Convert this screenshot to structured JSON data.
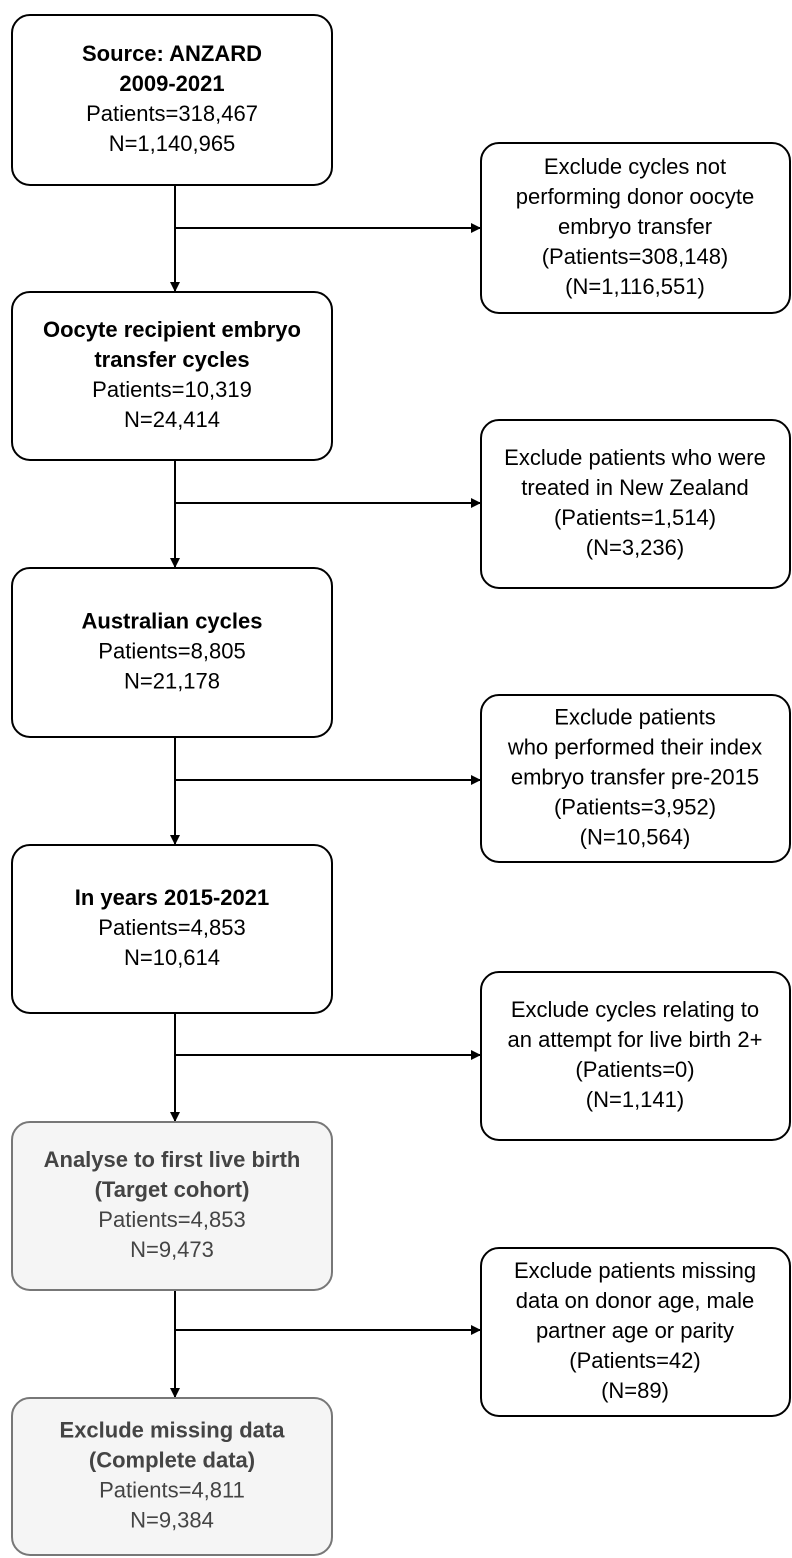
{
  "nodes": [
    {
      "title": [
        "Source: ANZARD",
        "2009-2021"
      ],
      "lines": [
        "Patients=318,467",
        "N=1,140,965"
      ]
    },
    {
      "title": [
        "Oocyte recipient embryo",
        "transfer cycles"
      ],
      "lines": [
        "Patients=10,319",
        "N=24,414"
      ]
    },
    {
      "title": [
        "Australian cycles"
      ],
      "lines": [
        "Patients=8,805",
        "N=21,178"
      ]
    },
    {
      "title": [
        "In years 2015-2021"
      ],
      "lines": [
        "Patients=4,853",
        "N=10,614"
      ]
    },
    {
      "title": [
        "Analyse to first live birth",
        "(Target cohort)"
      ],
      "lines": [
        "Patients=4,853",
        "N=9,473"
      ]
    },
    {
      "title": [
        "Exclude missing data",
        "(Complete data)"
      ],
      "lines": [
        "Patients=4,811",
        "N=9,384"
      ]
    }
  ],
  "exclusions": [
    {
      "lines": [
        "Exclude cycles not",
        "performing donor oocyte",
        "embryo transfer",
        "(Patients=308,148)",
        "(N=1,116,551)"
      ]
    },
    {
      "lines": [
        "Exclude patients who were",
        "treated in New Zealand",
        "(Patients=1,514)",
        "(N=3,236)"
      ]
    },
    {
      "lines": [
        "Exclude patients",
        "who performed their index",
        "embryo transfer pre-2015",
        "(Patients=3,952)",
        "(N=10,564)"
      ]
    },
    {
      "lines": [
        "Exclude cycles relating to",
        "an attempt for live birth 2+",
        "(Patients=0)",
        "(N=1,141)"
      ]
    },
    {
      "lines": [
        "Exclude patients missing",
        "data on donor age, male",
        "partner age or parity",
        "(Patients=42)",
        "(N=89)"
      ]
    }
  ]
}
